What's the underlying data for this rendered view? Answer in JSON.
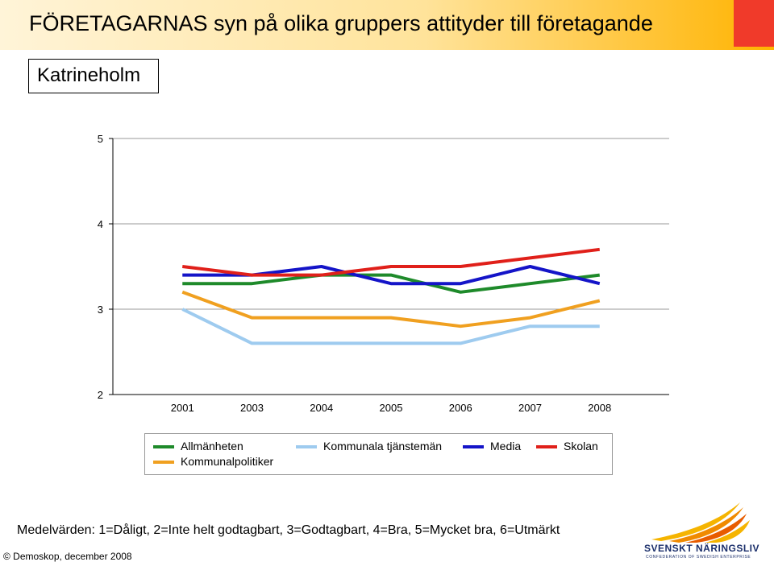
{
  "header": {
    "title": "FÖRETAGARNAS syn på olika gruppers attityder till företagande",
    "location": "Katrineholm"
  },
  "chart_data": {
    "type": "line",
    "categories": [
      "2001",
      "2003",
      "2004",
      "2005",
      "2006",
      "2007",
      "2008"
    ],
    "ylim": [
      2,
      5
    ],
    "yticks": [
      2,
      3,
      4,
      5
    ],
    "grid": "horizontal",
    "legend_position": "bottom",
    "series": [
      {
        "name": "Allmänheten",
        "color": "#1e8a2a",
        "values": [
          3.3,
          3.3,
          3.4,
          3.4,
          3.2,
          3.3,
          3.4
        ]
      },
      {
        "name": "Kommunala tjänstemän",
        "color": "#9ecbef",
        "values": [
          3.0,
          2.6,
          2.6,
          2.6,
          2.6,
          2.8,
          2.8
        ]
      },
      {
        "name": "Media",
        "color": "#1414c8",
        "values": [
          3.4,
          3.4,
          3.5,
          3.3,
          3.3,
          3.5,
          3.3
        ]
      },
      {
        "name": "Skolan",
        "color": "#e0201a",
        "values": [
          3.5,
          3.4,
          3.4,
          3.5,
          3.5,
          3.6,
          3.7
        ]
      },
      {
        "name": "Kommunalpolitiker",
        "color": "#f0a020",
        "values": [
          3.2,
          2.9,
          2.9,
          2.9,
          2.8,
          2.9,
          3.1
        ]
      }
    ]
  },
  "footnote": "Medelvärden: 1=Dåligt, 2=Inte helt godtagbart, 3=Godtagbart, 4=Bra, 5=Mycket bra, 6=Utmärkt",
  "copyright": "© Demoskop, december 2008",
  "logo": {
    "name": "SVENSKT NÄRINGSLIV",
    "subtitle": "CONFEDERATION OF SWEDISH ENTERPRISE"
  }
}
